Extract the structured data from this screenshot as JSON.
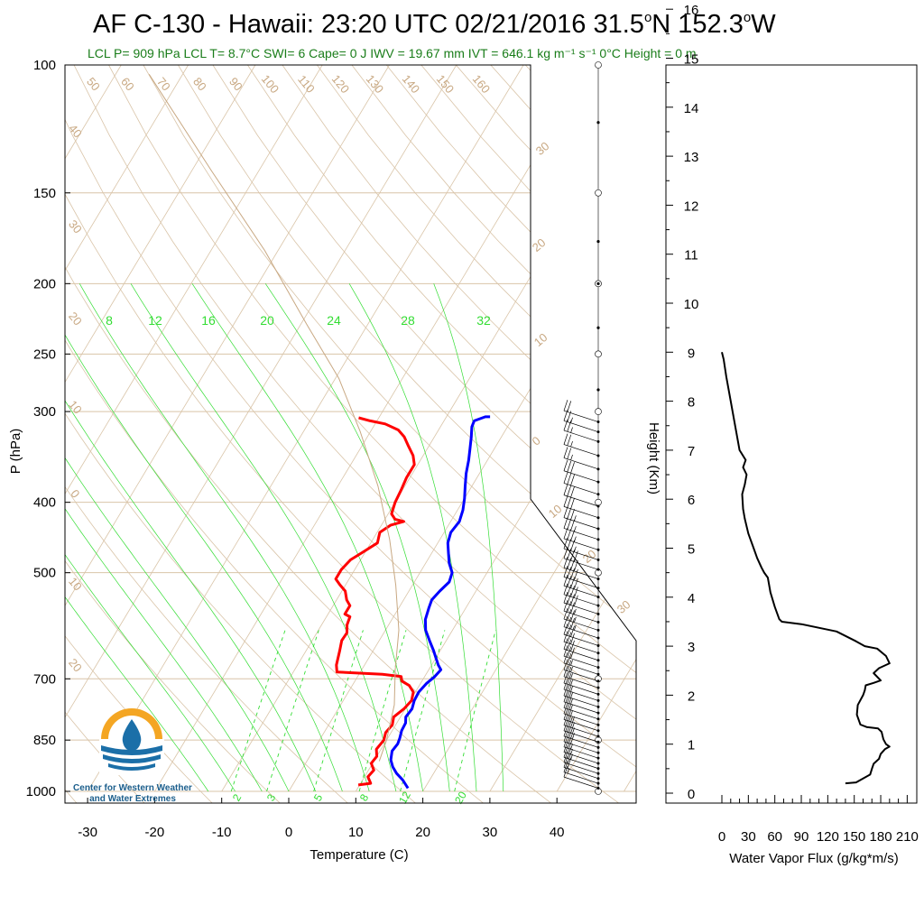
{
  "title": {
    "main": "AF C-130 - Hawaii: 23:20 UTC 02/21/2016  31.5",
    "deg1": "o",
    "lat_suffix": "N 152.3",
    "deg2": "o",
    "lon_suffix": "W",
    "subtitle": "LCL P= 909 hPa  LCL T= 8.7°C  SWI= 6  Cape= 0 J  IWV = 19.67 mm  IVT = 646.1 kg m⁻¹ s⁻¹  0°C Height = 0 m"
  },
  "logo": {
    "line1": "Center for Western Weather",
    "line2": "and Water Extremes"
  },
  "colors": {
    "temperature": "#ff0000",
    "dewpoint": "#0000ff",
    "isotherm": "#d9c4a8",
    "dry_adiabat": "#d9c4a8",
    "moist_adiabat": "#33dd33",
    "mixing_ratio": "#33dd33",
    "parcel": "#c8a882",
    "logo_orange": "#f4a623",
    "logo_blue": "#1b6fa8"
  },
  "chart_data": [
    {
      "type": "line",
      "name": "skew-t",
      "xlabel": "Temperature (C)",
      "ylabel": "P (hPa)",
      "xlim": [
        -35,
        52
      ],
      "ylim": [
        1000,
        100
      ],
      "y_scale": "log",
      "x_ticks": [
        -30,
        -20,
        -10,
        0,
        10,
        20,
        30,
        40
      ],
      "y_ticks": [
        100,
        150,
        200,
        250,
        300,
        400,
        500,
        700,
        850,
        1000
      ],
      "grid": true,
      "isotherm_labels_left": [
        40,
        30,
        20,
        10,
        0,
        -10,
        -20
      ],
      "isotherm_labels_right": [
        30,
        20,
        10,
        0,
        -10,
        -20,
        -30
      ],
      "dry_adiabat_labels": [
        50,
        60,
        70,
        80,
        90,
        100,
        110,
        120,
        130,
        140,
        150,
        160
      ],
      "moist_adiabat_labels": [
        8,
        12,
        16,
        20,
        24,
        28,
        32
      ],
      "mixing_ratio_labels": [
        2,
        3,
        5,
        8,
        12,
        20
      ],
      "series": [
        {
          "name": "temperature",
          "points": [
            [
              9.8,
              980
            ],
            [
              11.5,
              975
            ],
            [
              10.5,
              955
            ],
            [
              10.8,
              935
            ],
            [
              9.8,
              915
            ],
            [
              10.0,
              895
            ],
            [
              9.3,
              875
            ],
            [
              9.6,
              850
            ],
            [
              9.2,
              830
            ],
            [
              9.5,
              810
            ],
            [
              9.0,
              790
            ],
            [
              9.8,
              770
            ],
            [
              10.2,
              750
            ],
            [
              9.7,
              730
            ],
            [
              8.5,
              715
            ],
            [
              7.0,
              705
            ],
            [
              6.5,
              695
            ],
            [
              3.5,
              690
            ],
            [
              -3.5,
              685
            ],
            [
              -4.2,
              670
            ],
            [
              -5.0,
              640
            ],
            [
              -5.6,
              620
            ],
            [
              -5.5,
              605
            ],
            [
              -6.2,
              590
            ],
            [
              -6.5,
              575
            ],
            [
              -7.5,
              570
            ],
            [
              -7.5,
              555
            ],
            [
              -8.5,
              545
            ],
            [
              -9.5,
              530
            ],
            [
              -10.8,
              520
            ],
            [
              -12.0,
              510
            ],
            [
              -12.0,
              495
            ],
            [
              -11.5,
              480
            ],
            [
              -10.5,
              470
            ],
            [
              -9.0,
              455
            ],
            [
              -9.6,
              440
            ],
            [
              -8.6,
              430
            ],
            [
              -7.0,
              425
            ],
            [
              -8.5,
              422
            ],
            [
              -9.5,
              415
            ],
            [
              -10.0,
              400
            ],
            [
              -10.2,
              385
            ],
            [
              -10.5,
              370
            ],
            [
              -10.5,
              355
            ],
            [
              -11.5,
              345
            ],
            [
              -13.0,
              335
            ],
            [
              -14.5,
              325
            ],
            [
              -16.0,
              318
            ],
            [
              -18.5,
              312
            ],
            [
              -21.0,
              309
            ],
            [
              -23.0,
              306
            ]
          ]
        },
        {
          "name": "dewpoint",
          "points": [
            [
              17.5,
              990
            ],
            [
              16.0,
              965
            ],
            [
              14.5,
              945
            ],
            [
              13.3,
              925
            ],
            [
              12.4,
              905
            ],
            [
              11.8,
              880
            ],
            [
              12.0,
              860
            ],
            [
              11.8,
              845
            ],
            [
              11.4,
              825
            ],
            [
              11.3,
              805
            ],
            [
              10.8,
              790
            ],
            [
              11.0,
              770
            ],
            [
              10.6,
              750
            ],
            [
              10.5,
              730
            ],
            [
              10.9,
              710
            ],
            [
              11.5,
              695
            ],
            [
              11.8,
              680
            ],
            [
              11.0,
              670
            ],
            [
              10.0,
              655
            ],
            [
              9.0,
              640
            ],
            [
              7.5,
              620
            ],
            [
              6.0,
              600
            ],
            [
              5.0,
              580
            ],
            [
              4.5,
              560
            ],
            [
              4.2,
              545
            ],
            [
              4.6,
              530
            ],
            [
              5.2,
              515
            ],
            [
              4.8,
              500
            ],
            [
              3.5,
              485
            ],
            [
              2.5,
              470
            ],
            [
              1.5,
              455
            ],
            [
              1.0,
              440
            ],
            [
              1.3,
              425
            ],
            [
              0.8,
              410
            ],
            [
              0.0,
              395
            ],
            [
              -1.0,
              380
            ],
            [
              -2.0,
              365
            ],
            [
              -2.8,
              350
            ],
            [
              -3.6,
              338
            ],
            [
              -4.5,
              325
            ],
            [
              -5.3,
              315
            ],
            [
              -5.5,
              309
            ],
            [
              -4.2,
              305
            ],
            [
              -3.5,
              305
            ]
          ]
        },
        {
          "name": "parcel",
          "points": [
            [
              10.8,
              909
            ],
            [
              10.0,
              850
            ],
            [
              8.0,
              760
            ],
            [
              5.0,
              680
            ],
            [
              2.0,
              600
            ],
            [
              -2.5,
              520
            ],
            [
              -7.5,
              450
            ],
            [
              -14.0,
              380
            ],
            [
              -21.5,
              320
            ],
            [
              -29.5,
              270
            ],
            [
              -39.0,
              228
            ],
            [
              -52.0,
              180
            ],
            [
              -67.0,
              140
            ],
            [
              -85.0,
              103
            ]
          ]
        }
      ],
      "wind_barbs": [
        {
          "p": 990,
          "spd": 10
        },
        {
          "p": 975,
          "spd": 15
        },
        {
          "p": 960,
          "spd": 20
        },
        {
          "p": 945,
          "spd": 20
        },
        {
          "p": 930,
          "spd": 25
        },
        {
          "p": 915,
          "spd": 25
        },
        {
          "p": 900,
          "spd": 25
        },
        {
          "p": 885,
          "spd": 30
        },
        {
          "p": 870,
          "spd": 30
        },
        {
          "p": 855,
          "spd": 30
        },
        {
          "p": 840,
          "spd": 30
        },
        {
          "p": 825,
          "spd": 25
        },
        {
          "p": 810,
          "spd": 25
        },
        {
          "p": 795,
          "spd": 25
        },
        {
          "p": 780,
          "spd": 25
        },
        {
          "p": 765,
          "spd": 25
        },
        {
          "p": 750,
          "spd": 25
        },
        {
          "p": 735,
          "spd": 25
        },
        {
          "p": 720,
          "spd": 25
        },
        {
          "p": 705,
          "spd": 25
        },
        {
          "p": 690,
          "spd": 25
        },
        {
          "p": 675,
          "spd": 30
        },
        {
          "p": 660,
          "spd": 30
        },
        {
          "p": 645,
          "spd": 30
        },
        {
          "p": 630,
          "spd": 30
        },
        {
          "p": 615,
          "spd": 35
        },
        {
          "p": 600,
          "spd": 35
        },
        {
          "p": 585,
          "spd": 35
        },
        {
          "p": 570,
          "spd": 40
        },
        {
          "p": 555,
          "spd": 40
        },
        {
          "p": 540,
          "spd": 40
        },
        {
          "p": 525,
          "spd": 40
        },
        {
          "p": 510,
          "spd": 40
        },
        {
          "p": 495,
          "spd": 40
        },
        {
          "p": 480,
          "spd": 35
        },
        {
          "p": 465,
          "spd": 35
        },
        {
          "p": 450,
          "spd": 35
        },
        {
          "p": 435,
          "spd": 35
        },
        {
          "p": 420,
          "spd": 30
        },
        {
          "p": 405,
          "spd": 30
        },
        {
          "p": 390,
          "spd": 30
        },
        {
          "p": 375,
          "spd": 30
        },
        {
          "p": 360,
          "spd": 25
        },
        {
          "p": 345,
          "spd": 25
        },
        {
          "p": 330,
          "spd": 25
        },
        {
          "p": 320,
          "spd": 25
        },
        {
          "p": 310,
          "spd": 20
        }
      ]
    },
    {
      "type": "line",
      "name": "water-vapor-flux",
      "xlabel": "Water Vapor Flux (g/kg*m/s)",
      "ylabel": "Height (Km)",
      "xlim": [
        0,
        210
      ],
      "ylim": [
        0,
        16.5
      ],
      "x_ticks": [
        0,
        30,
        60,
        90,
        120,
        150,
        180,
        210
      ],
      "y_ticks": [
        0,
        1,
        2,
        3,
        4,
        5,
        6,
        7,
        8,
        9,
        10,
        11,
        12,
        13,
        14,
        15,
        16
      ],
      "points": [
        [
          140,
          0.2
        ],
        [
          152,
          0.22
        ],
        [
          160,
          0.3
        ],
        [
          168,
          0.38
        ],
        [
          170,
          0.5
        ],
        [
          172,
          0.6
        ],
        [
          178,
          0.7
        ],
        [
          180,
          0.8
        ],
        [
          185,
          0.9
        ],
        [
          190,
          0.95
        ],
        [
          186,
          1.0
        ],
        [
          183,
          1.1
        ],
        [
          181,
          1.25
        ],
        [
          177,
          1.32
        ],
        [
          164,
          1.35
        ],
        [
          157,
          1.4
        ],
        [
          153,
          1.6
        ],
        [
          154,
          1.8
        ],
        [
          160,
          2.0
        ],
        [
          162,
          2.1
        ],
        [
          163,
          2.2
        ],
        [
          172,
          2.25
        ],
        [
          180,
          2.3
        ],
        [
          172,
          2.45
        ],
        [
          178,
          2.55
        ],
        [
          190,
          2.65
        ],
        [
          186,
          2.8
        ],
        [
          176,
          2.95
        ],
        [
          162,
          3.0
        ],
        [
          152,
          3.1
        ],
        [
          130,
          3.3
        ],
        [
          90,
          3.45
        ],
        [
          68,
          3.5
        ],
        [
          65,
          3.55
        ],
        [
          60,
          3.8
        ],
        [
          55,
          4.1
        ],
        [
          52,
          4.4
        ],
        [
          48,
          4.5
        ],
        [
          45,
          4.6
        ],
        [
          40,
          4.8
        ],
        [
          36,
          5.0
        ],
        [
          30,
          5.3
        ],
        [
          26,
          5.6
        ],
        [
          24,
          5.8
        ],
        [
          23,
          6.1
        ],
        [
          26,
          6.3
        ],
        [
          28,
          6.5
        ],
        [
          24,
          6.65
        ],
        [
          27,
          6.8
        ],
        [
          20,
          7.0
        ],
        [
          15,
          7.5
        ],
        [
          10,
          8.0
        ],
        [
          5,
          8.5
        ],
        [
          2,
          8.85
        ],
        [
          0,
          9.0
        ]
      ]
    }
  ]
}
